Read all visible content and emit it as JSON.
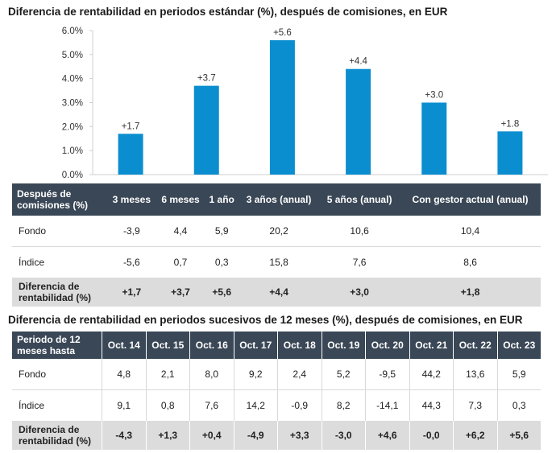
{
  "chart_data": {
    "type": "bar",
    "title": "Diferencia de rentabilidad en periodos estándar (%), después de comisiones, en EUR",
    "categories": [
      "3 meses",
      "6 meses",
      "1 año",
      "3 años (anual)",
      "5 años (anual)",
      "Con gestor actual (anual)"
    ],
    "values": [
      1.7,
      3.7,
      5.6,
      4.4,
      3.0,
      1.8
    ],
    "data_labels": [
      "+1.7",
      "+3.7",
      "+5.6",
      "+4.4",
      "+3.0",
      "+1.8"
    ],
    "ylim": [
      0,
      6
    ],
    "yticks": [
      "0.0%",
      "1.0%",
      "2.0%",
      "3.0%",
      "4.0%",
      "5.0%",
      "6.0%"
    ],
    "bar_color": "#0b8ed0",
    "xlabel": "",
    "ylabel": ""
  },
  "table1": {
    "header_label": "Después de comisiones (%)",
    "columns": [
      "3 meses",
      "6 meses",
      "1 año",
      "3 años (anual)",
      "5 años (anual)",
      "Con gestor actual (anual)"
    ],
    "rows": [
      {
        "label": "Fondo",
        "values": [
          "-3,9",
          "4,4",
          "5,9",
          "20,2",
          "10,6",
          "10,4"
        ]
      },
      {
        "label": "Índice",
        "values": [
          "-5,6",
          "0,7",
          "0,3",
          "15,8",
          "7,6",
          "8,6"
        ]
      },
      {
        "label": "Diferencia de rentabilidad (%)",
        "values": [
          "+1,7",
          "+3,7",
          "+5,6",
          "+4,4",
          "+3,0",
          "+1,8"
        ]
      }
    ]
  },
  "section2": {
    "title": "Diferencia de rentabilidad en periodos sucesivos de 12 meses (%), después de comisiones, en EUR"
  },
  "table2": {
    "header_label": "Periodo de 12 meses hasta",
    "columns": [
      "Oct. 14",
      "Oct. 15",
      "Oct. 16",
      "Oct. 17",
      "Oct. 18",
      "Oct. 19",
      "Oct. 20",
      "Oct. 21",
      "Oct. 22",
      "Oct. 23"
    ],
    "rows": [
      {
        "label": "Fondo",
        "values": [
          "4,8",
          "2,1",
          "8,0",
          "9,2",
          "2,4",
          "5,2",
          "-9,5",
          "44,2",
          "13,6",
          "5,9"
        ]
      },
      {
        "label": "Índice",
        "values": [
          "9,1",
          "0,8",
          "7,6",
          "14,2",
          "-0,9",
          "8,2",
          "-14,1",
          "44,3",
          "7,3",
          "0,3"
        ]
      },
      {
        "label": "Diferencia de rentabilidad (%)",
        "values": [
          "-4,3",
          "+1,3",
          "+0,4",
          "-4,9",
          "+3,3",
          "-3,0",
          "+4,6",
          "-0,0",
          "+6,2",
          "+5,6"
        ]
      }
    ]
  }
}
